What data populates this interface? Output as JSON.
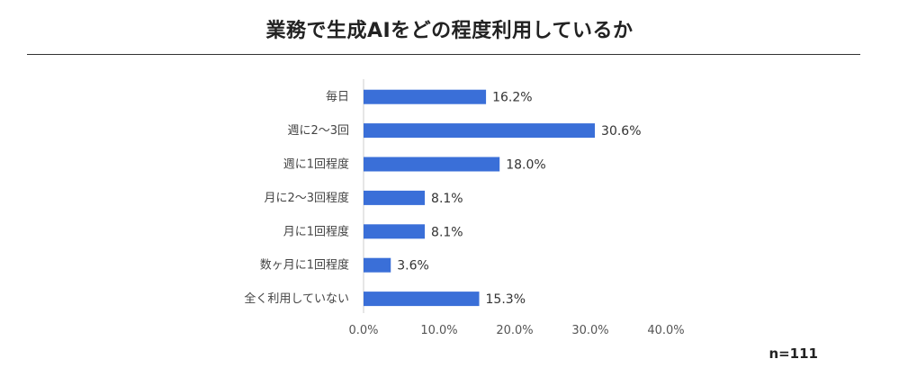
{
  "chart_data": {
    "type": "bar",
    "orientation": "horizontal",
    "title": "業務で生成AIをどの程度利用しているか",
    "categories": [
      "毎日",
      "週に2～3回",
      "週に1回程度",
      "月に2～3回程度",
      "月に1回程度",
      "数ヶ月に1回程度",
      "全く利用していない"
    ],
    "values": [
      16.2,
      30.6,
      18.0,
      8.1,
      8.1,
      3.6,
      15.3
    ],
    "value_labels": [
      "16.2%",
      "30.6%",
      "18.0%",
      "8.1%",
      "8.1%",
      "3.6%",
      "15.3%"
    ],
    "xlim": [
      0,
      40
    ],
    "xticks": [
      0,
      10,
      20,
      30,
      40
    ],
    "xtick_labels": [
      "0.0%",
      "10.0%",
      "20.0%",
      "30.0%",
      "40.0%"
    ],
    "grid": false,
    "bar_color": "#3a6fd8",
    "note": "n=111"
  }
}
